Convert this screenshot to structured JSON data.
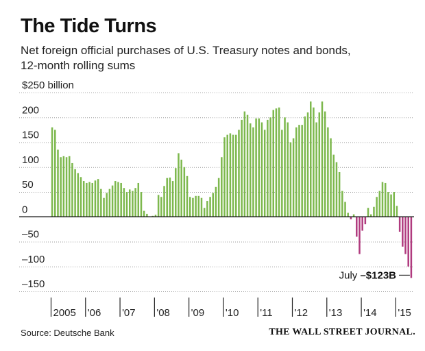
{
  "header": {
    "title": "The Tide Turns",
    "subtitle_line1": "Net foreign official purchases of U.S. Treasury notes and bonds,",
    "subtitle_line2": "12-month rolling sums"
  },
  "footer": {
    "source": "Source: Deutsche Bank",
    "publisher": "THE WALL STREET JOURNAL."
  },
  "colors": {
    "positive": "#7db84d",
    "negative": "#b03a7e",
    "grid": "#9a9a9a",
    "zero_line": "#222222"
  },
  "chart_data": {
    "type": "bar",
    "title": "The Tide Turns",
    "subtitle": "Net foreign official purchases of U.S. Treasury notes and bonds, 12-month rolling sums",
    "ylabel": "",
    "unit_label": "$250 billion",
    "ylim": [
      -150,
      250
    ],
    "yticks": [
      {
        "value": 250,
        "label": "$250 billion"
      },
      {
        "value": 200,
        "label": "200"
      },
      {
        "value": 150,
        "label": "150"
      },
      {
        "value": 100,
        "label": "100"
      },
      {
        "value": 50,
        "label": "50"
      },
      {
        "value": 0,
        "label": "0"
      },
      {
        "value": -50,
        "label": "–50"
      },
      {
        "value": -100,
        "label": "–100"
      },
      {
        "value": -150,
        "label": "–150"
      }
    ],
    "grid": true,
    "x_start": "2005-01",
    "x_ticks": [
      "2005",
      "'06",
      "'07",
      "'08",
      "'09",
      "'10",
      "'11",
      "'12",
      "'13",
      "'14",
      "'15"
    ],
    "values": [
      180,
      175,
      135,
      120,
      122,
      120,
      122,
      108,
      96,
      88,
      80,
      72,
      68,
      70,
      68,
      73,
      76,
      56,
      38,
      48,
      56,
      63,
      72,
      70,
      68,
      58,
      50,
      55,
      52,
      58,
      68,
      50,
      12,
      6,
      0,
      2,
      4,
      44,
      40,
      62,
      78,
      79,
      72,
      98,
      128,
      115,
      100,
      82,
      40,
      38,
      42,
      42,
      38,
      18,
      32,
      40,
      48,
      60,
      78,
      120,
      160,
      165,
      168,
      165,
      165,
      175,
      195,
      212,
      205,
      188,
      180,
      198,
      198,
      190,
      175,
      195,
      200,
      215,
      218,
      220,
      175,
      200,
      190,
      150,
      158,
      180,
      185,
      185,
      202,
      210,
      232,
      220,
      190,
      210,
      232,
      212,
      180,
      158,
      125,
      110,
      90,
      52,
      30,
      8,
      -5,
      5,
      -40,
      -75,
      -28,
      -15,
      18,
      5,
      20,
      40,
      52,
      70,
      68,
      50,
      45,
      50,
      22,
      -30,
      -60,
      -75,
      -100,
      -123
    ],
    "annotation": {
      "prefix": "July ",
      "value_label": "–$123B"
    },
    "source": "Source: Deutsche Bank"
  }
}
